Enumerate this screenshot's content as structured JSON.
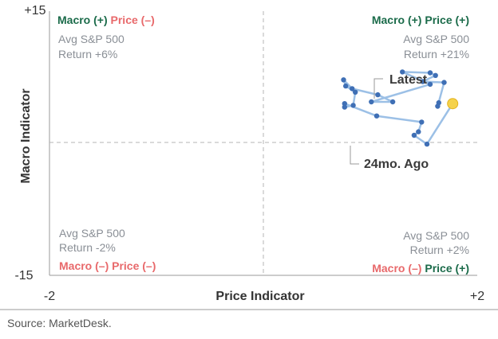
{
  "chart_data": {
    "type": "scatter",
    "xlabel": "Price Indicator",
    "ylabel": "Macro Indicator",
    "xlim": [
      -2,
      2
    ],
    "ylim": [
      -15,
      15
    ],
    "x_ticks": [
      "-2",
      "+2"
    ],
    "y_ticks": [
      "+15",
      "-15"
    ],
    "grid": false,
    "series": [
      {
        "points": [
          [
            1.64,
            4.6
          ],
          [
            1.63,
            4.2
          ],
          [
            1.69,
            6.9
          ],
          [
            1.49,
            7.0
          ],
          [
            1.61,
            7.7
          ],
          [
            1.56,
            8.0
          ],
          [
            1.3,
            8.1
          ],
          [
            1.56,
            6.7
          ],
          [
            1.01,
            4.7
          ],
          [
            1.21,
            4.7
          ],
          [
            1.07,
            5.5
          ],
          [
            0.83,
            6.2
          ],
          [
            0.75,
            7.2
          ],
          [
            0.77,
            6.5
          ],
          [
            0.86,
            5.8
          ],
          [
            0.84,
            4.3
          ],
          [
            0.76,
            4.1
          ],
          [
            0.76,
            4.5
          ],
          [
            1.06,
            3.1
          ],
          [
            1.48,
            2.4
          ],
          [
            1.45,
            1.3
          ],
          [
            1.41,
            0.9
          ],
          [
            1.53,
            -0.1
          ],
          [
            1.77,
            4.5
          ]
        ],
        "color": "#3f6fb5",
        "line_color": "#9cc0e6",
        "highlight_color": "#f5d24b"
      }
    ],
    "quadrants": {
      "top_left": {
        "macro": "Macro (+)",
        "price": "Price (–)",
        "note_line1": "Avg S&P 500",
        "note_line2": "Return +6%"
      },
      "top_right": {
        "macro": "Macro (+)",
        "price": "Price (+)",
        "note_line1": "Avg S&P 500",
        "note_line2": "Return +21%"
      },
      "bottom_left": {
        "macro": "Macro (–)",
        "price": "Price (–)",
        "note_line1": "Avg S&P 500",
        "note_line2": "Return -2%"
      },
      "bottom_right": {
        "macro": "Macro (–)",
        "price": "Price (+)",
        "note_line1": "Avg S&P 500",
        "note_line2": "Return +2%"
      }
    },
    "annotations": {
      "latest": "Latest",
      "oldest": "24mo. Ago"
    },
    "colors": {
      "positive": "#1b6b4a",
      "negative": "#e8696b",
      "divider": "#b5b5b5"
    }
  },
  "source": "Source: MarketDesk."
}
